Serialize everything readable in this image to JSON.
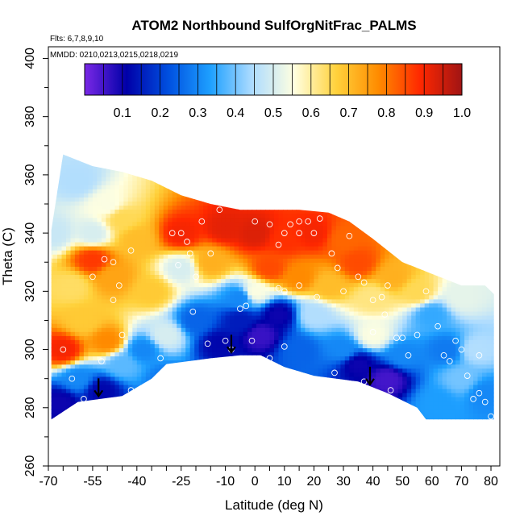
{
  "chart_data": {
    "type": "heatmap",
    "title": "ATOM2 Northbound SulfOrgNitFrac_PALMS",
    "notes": [
      "Flts: 6,7,8,9,10",
      "MMDD: 0210,0213,0215,0218,0219"
    ],
    "xlabel": "Latitude (deg N)",
    "ylabel": "Theta (C)",
    "xlim": [
      -70,
      83
    ],
    "ylim": [
      260,
      404
    ],
    "x_ticks": [
      -70,
      -55,
      -40,
      -25,
      -10,
      0,
      10,
      20,
      30,
      40,
      50,
      60,
      70,
      80
    ],
    "y_ticks": [
      260,
      280,
      300,
      320,
      340,
      360,
      380,
      400
    ],
    "colorbar": {
      "range": [
        0,
        1.0
      ],
      "ticks": [
        "0.1",
        "0.2",
        "0.3",
        "0.4",
        "0.5",
        "0.6",
        "0.7",
        "0.8",
        "0.9",
        "1.0"
      ],
      "colors": [
        "#7a28e6",
        "#0000a8",
        "#0050e0",
        "#1ea0ff",
        "#aedcff",
        "#ffffe0",
        "#ffd23c",
        "#ff8c00",
        "#ff2800",
        "#a01414"
      ]
    },
    "coverage": {
      "top": [
        [
          -69,
          341
        ],
        [
          -65,
          367
        ],
        [
          -55,
          363
        ],
        [
          -45,
          361
        ],
        [
          -35,
          358
        ],
        [
          -25,
          353
        ],
        [
          -15,
          350
        ],
        [
          -5,
          348
        ],
        [
          5,
          348
        ],
        [
          15,
          348
        ],
        [
          25,
          347
        ],
        [
          32,
          344
        ],
        [
          40,
          338
        ],
        [
          50,
          330
        ],
        [
          60,
          326
        ],
        [
          70,
          322
        ],
        [
          78,
          322
        ],
        [
          81,
          319
        ]
      ],
      "bottom": [
        [
          -69,
          276
        ],
        [
          -60,
          282
        ],
        [
          -45,
          284
        ],
        [
          -35,
          290
        ],
        [
          -30,
          295
        ],
        [
          -15,
          297
        ],
        [
          -5,
          298
        ],
        [
          2,
          298
        ],
        [
          10,
          294
        ],
        [
          20,
          291
        ],
        [
          35,
          289
        ],
        [
          45,
          285
        ],
        [
          55,
          280
        ],
        [
          58,
          276
        ],
        [
          81,
          276
        ]
      ]
    },
    "field": [
      {
        "x": -68,
        "y": 340,
        "v": 0.48
      },
      {
        "x": -60,
        "y": 358,
        "v": 0.45
      },
      {
        "x": -55,
        "y": 340,
        "v": 0.5
      },
      {
        "x": -50,
        "y": 350,
        "v": 0.55
      },
      {
        "x": -45,
        "y": 345,
        "v": 0.65
      },
      {
        "x": -40,
        "y": 338,
        "v": 0.7
      },
      {
        "x": -55,
        "y": 331,
        "v": 0.87
      },
      {
        "x": -48,
        "y": 325,
        "v": 0.74
      },
      {
        "x": -62,
        "y": 322,
        "v": 0.64
      },
      {
        "x": -65,
        "y": 300,
        "v": 0.9
      },
      {
        "x": -60,
        "y": 290,
        "v": 0.3
      },
      {
        "x": -58,
        "y": 310,
        "v": 0.68
      },
      {
        "x": -50,
        "y": 303,
        "v": 0.78
      },
      {
        "x": -45,
        "y": 295,
        "v": 0.38
      },
      {
        "x": -52,
        "y": 286,
        "v": 0.12
      },
      {
        "x": -35,
        "y": 320,
        "v": 0.68
      },
      {
        "x": -25,
        "y": 340,
        "v": 0.9
      },
      {
        "x": -30,
        "y": 305,
        "v": 0.5
      },
      {
        "x": -38,
        "y": 300,
        "v": 0.3
      },
      {
        "x": -25,
        "y": 328,
        "v": 0.5
      },
      {
        "x": -20,
        "y": 310,
        "v": 0.25
      },
      {
        "x": -12,
        "y": 302,
        "v": 0.12
      },
      {
        "x": -5,
        "y": 310,
        "v": 0.15
      },
      {
        "x": 2,
        "y": 305,
        "v": 0.06
      },
      {
        "x": 8,
        "y": 312,
        "v": 0.1
      },
      {
        "x": -5,
        "y": 318,
        "v": 0.3
      },
      {
        "x": -15,
        "y": 330,
        "v": 0.72
      },
      {
        "x": -10,
        "y": 342,
        "v": 0.92
      },
      {
        "x": 0,
        "y": 340,
        "v": 0.93
      },
      {
        "x": 10,
        "y": 338,
        "v": 0.88
      },
      {
        "x": 5,
        "y": 328,
        "v": 0.85
      },
      {
        "x": 15,
        "y": 325,
        "v": 0.78
      },
      {
        "x": 20,
        "y": 340,
        "v": 0.9
      },
      {
        "x": 30,
        "y": 338,
        "v": 0.82
      },
      {
        "x": 25,
        "y": 322,
        "v": 0.7
      },
      {
        "x": 20,
        "y": 312,
        "v": 0.45
      },
      {
        "x": 15,
        "y": 300,
        "v": 0.25
      },
      {
        "x": 35,
        "y": 330,
        "v": 0.85
      },
      {
        "x": 40,
        "y": 318,
        "v": 0.62
      },
      {
        "x": 40,
        "y": 305,
        "v": 0.55
      },
      {
        "x": 30,
        "y": 300,
        "v": 0.3
      },
      {
        "x": 35,
        "y": 295,
        "v": 0.1
      },
      {
        "x": 45,
        "y": 290,
        "v": 0.05
      },
      {
        "x": 50,
        "y": 298,
        "v": 0.3
      },
      {
        "x": 55,
        "y": 320,
        "v": 0.65
      },
      {
        "x": 60,
        "y": 312,
        "v": 0.35
      },
      {
        "x": 65,
        "y": 300,
        "v": 0.28
      },
      {
        "x": 70,
        "y": 318,
        "v": 0.52
      },
      {
        "x": 75,
        "y": 300,
        "v": 0.45
      },
      {
        "x": 70,
        "y": 290,
        "v": 0.4
      },
      {
        "x": 62,
        "y": 282,
        "v": 0.33
      },
      {
        "x": 78,
        "y": 285,
        "v": 0.3
      },
      {
        "x": 47,
        "y": 325,
        "v": 0.72
      },
      {
        "x": -30,
        "y": 290,
        "v": 0.28
      },
      {
        "x": -66,
        "y": 282,
        "v": 0.1
      },
      {
        "x": 0,
        "y": 320,
        "v": 0.55
      }
    ],
    "observations": [
      [
        -65,
        300
      ],
      [
        -62,
        290
      ],
      [
        -58,
        283
      ],
      [
        -52,
        296
      ],
      [
        -55,
        325
      ],
      [
        -51,
        331
      ],
      [
        -48,
        330
      ],
      [
        -42,
        334
      ],
      [
        -46,
        322
      ],
      [
        -48,
        317
      ],
      [
        -45,
        305
      ],
      [
        -42,
        286
      ],
      [
        -32,
        297
      ],
      [
        -26,
        329
      ],
      [
        -22,
        333
      ],
      [
        -28,
        340
      ],
      [
        -25,
        340
      ],
      [
        -23,
        337
      ],
      [
        -18,
        344
      ],
      [
        -12,
        348
      ],
      [
        -15,
        333
      ],
      [
        -20,
        325
      ],
      [
        -21,
        313
      ],
      [
        -16,
        302
      ],
      [
        -10,
        303
      ],
      [
        -8,
        300
      ],
      [
        -5,
        314
      ],
      [
        -3,
        315
      ],
      [
        -1,
        303
      ],
      [
        0,
        344
      ],
      [
        5,
        343
      ],
      [
        8,
        336
      ],
      [
        10,
        340
      ],
      [
        12,
        343
      ],
      [
        15,
        344
      ],
      [
        15,
        340
      ],
      [
        18,
        344
      ],
      [
        8,
        321
      ],
      [
        10,
        320
      ],
      [
        15,
        322
      ],
      [
        21,
        318
      ],
      [
        20,
        340
      ],
      [
        22,
        345
      ],
      [
        26,
        333
      ],
      [
        28,
        328
      ],
      [
        30,
        320
      ],
      [
        32,
        339
      ],
      [
        35,
        325
      ],
      [
        37,
        323
      ],
      [
        40,
        317
      ],
      [
        40,
        306
      ],
      [
        43,
        318
      ],
      [
        44,
        312
      ],
      [
        45,
        322
      ],
      [
        48,
        304
      ],
      [
        50,
        304
      ],
      [
        52,
        298
      ],
      [
        55,
        305
      ],
      [
        58,
        320
      ],
      [
        62,
        308
      ],
      [
        64,
        298
      ],
      [
        66,
        296
      ],
      [
        68,
        303
      ],
      [
        70,
        300
      ],
      [
        72,
        291
      ],
      [
        74,
        283
      ],
      [
        76,
        285
      ],
      [
        78,
        282
      ],
      [
        76,
        298
      ],
      [
        80,
        277
      ],
      [
        27,
        292
      ],
      [
        37,
        289
      ],
      [
        46,
        286
      ],
      [
        5,
        297
      ],
      [
        10,
        301
      ]
    ],
    "arrows": [
      [
        -53,
        284
      ],
      [
        -8,
        299
      ],
      [
        39,
        288
      ]
    ]
  }
}
